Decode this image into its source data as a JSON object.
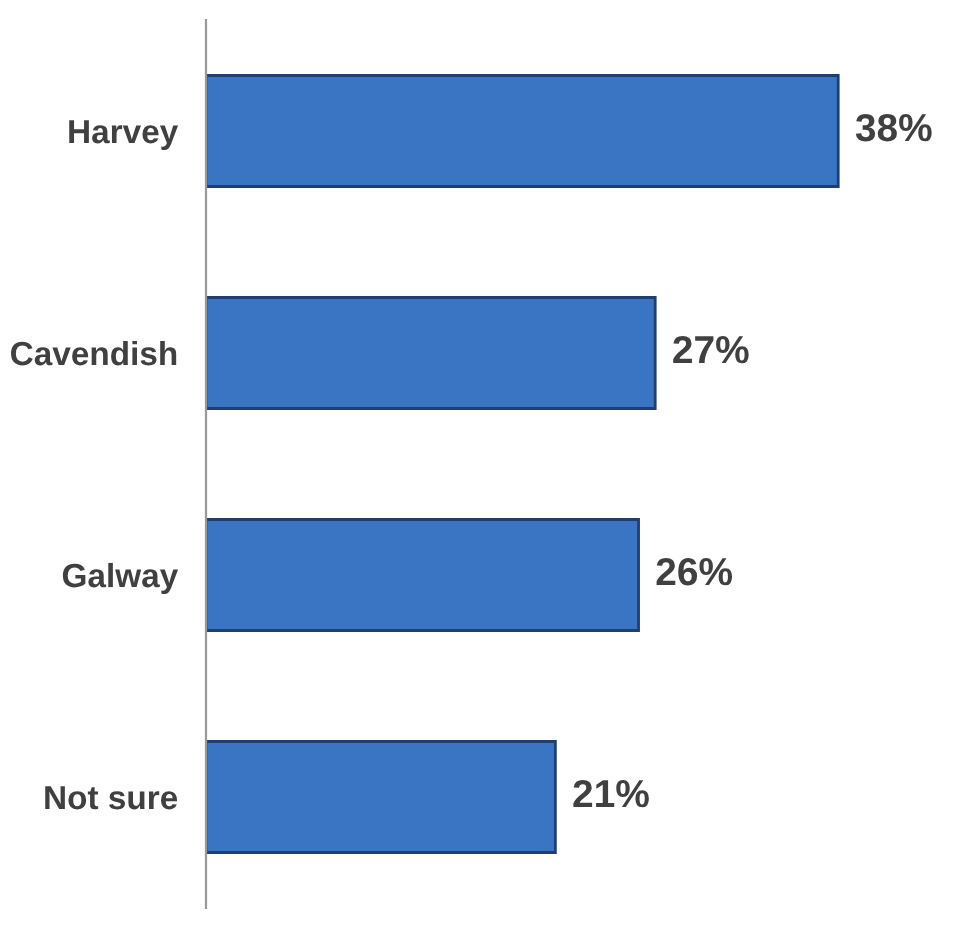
{
  "chart_data": {
    "type": "bar",
    "orientation": "horizontal",
    "categories": [
      "Harvey",
      "Cavendish",
      "Galway",
      "Not sure"
    ],
    "values": [
      38,
      27,
      26,
      21
    ],
    "value_labels": [
      "38%",
      "27%",
      "26%",
      "21%"
    ],
    "color": "#3a75c4",
    "grid": false,
    "legend": false
  }
}
